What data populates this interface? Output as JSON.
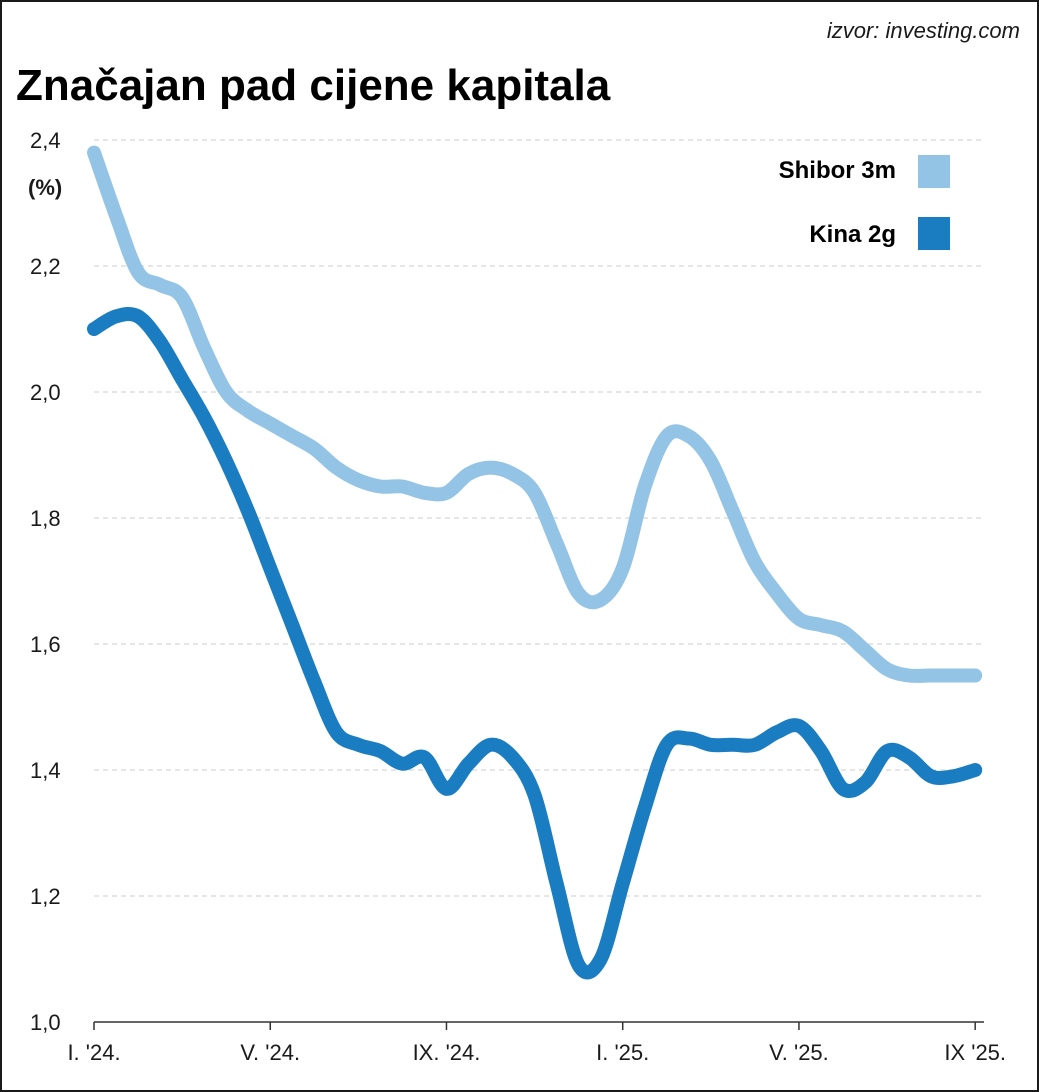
{
  "source": "izvor: investing.com",
  "chart_data": {
    "type": "line",
    "title": "Značajan pad cijene kapitala",
    "ylabel": "(%)",
    "xlabel": "",
    "ylim": [
      1.0,
      2.4
    ],
    "yticks": [
      1.0,
      1.2,
      1.4,
      1.6,
      1.8,
      2.0,
      2.2,
      2.4
    ],
    "ytick_labels": [
      "1,0",
      "1,2",
      "1,4",
      "1,6",
      "1,8",
      "2,0",
      "2,2",
      "2,4"
    ],
    "xlim": [
      0,
      20.2
    ],
    "xticks": [
      0,
      4,
      8,
      12,
      16,
      20
    ],
    "xtick_labels": [
      "I. '24.",
      "V. '24.",
      "IX. '24.",
      "I. '25.",
      "V. '25.",
      "IX '25."
    ],
    "grid": true,
    "legend_position": "top-right",
    "series": [
      {
        "name": "Shibor 3m",
        "color": "#93c4e6",
        "x": [
          0,
          0.5,
          1.0,
          1.5,
          2.0,
          2.5,
          3.0,
          3.5,
          4.0,
          4.5,
          5.0,
          5.5,
          6.0,
          6.5,
          7.0,
          7.5,
          8.0,
          8.5,
          9.0,
          9.5,
          10.0,
          10.5,
          11.0,
          11.5,
          12.0,
          12.5,
          13.0,
          13.5,
          14.0,
          14.5,
          15.0,
          15.5,
          16.0,
          16.5,
          17.0,
          17.5,
          18.0,
          18.5,
          19.0,
          19.5,
          20.0
        ],
        "values": [
          2.38,
          2.28,
          2.19,
          2.17,
          2.15,
          2.07,
          2.0,
          1.97,
          1.95,
          1.93,
          1.91,
          1.88,
          1.86,
          1.85,
          1.85,
          1.84,
          1.84,
          1.87,
          1.88,
          1.87,
          1.84,
          1.76,
          1.68,
          1.67,
          1.72,
          1.85,
          1.93,
          1.93,
          1.89,
          1.81,
          1.73,
          1.68,
          1.64,
          1.63,
          1.62,
          1.59,
          1.56,
          1.55,
          1.55,
          1.55,
          1.55
        ]
      },
      {
        "name": "Kina 2g",
        "color": "#1a7dc2",
        "x": [
          0,
          0.5,
          1.0,
          1.5,
          2.0,
          2.5,
          3.0,
          3.5,
          4.0,
          4.5,
          5.0,
          5.5,
          6.0,
          6.5,
          7.0,
          7.5,
          8.0,
          8.5,
          9.0,
          9.5,
          10.0,
          10.5,
          11.0,
          11.5,
          12.0,
          12.5,
          13.0,
          13.5,
          14.0,
          14.5,
          15.0,
          15.5,
          16.0,
          16.5,
          17.0,
          17.5,
          18.0,
          18.5,
          19.0,
          19.5,
          20.0
        ],
        "values": [
          2.1,
          2.12,
          2.12,
          2.08,
          2.02,
          1.96,
          1.89,
          1.81,
          1.72,
          1.63,
          1.54,
          1.46,
          1.44,
          1.43,
          1.41,
          1.42,
          1.37,
          1.41,
          1.44,
          1.42,
          1.36,
          1.22,
          1.09,
          1.1,
          1.22,
          1.34,
          1.44,
          1.45,
          1.44,
          1.44,
          1.44,
          1.46,
          1.47,
          1.43,
          1.37,
          1.38,
          1.43,
          1.42,
          1.39,
          1.39,
          1.4
        ]
      }
    ]
  }
}
